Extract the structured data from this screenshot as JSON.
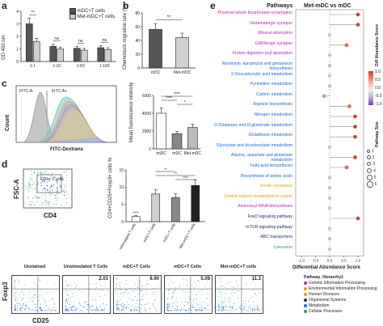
{
  "panel_labels": {
    "a": "a",
    "b": "b",
    "c": "c",
    "d": "d",
    "e": "e"
  },
  "colors": {
    "mDC": "#555555",
    "Met_mDC": "#cfcfcf",
    "blue_cat": "#1a66d6",
    "purple_cat": "#c020c0",
    "orange_cat": "#e6a000",
    "navy_cat": "#1a2a6c",
    "green_cat": "#16a085",
    "red_high": "#d83a1a",
    "mid": "#e6e6e6",
    "purple_low": "#7a3ab0"
  },
  "panel_a": {
    "ylabel": "OD 450 nm",
    "legend": [
      "mDC+T cells",
      "Met-mDC+T cells"
    ],
    "sig": [
      "**",
      "ns",
      "ns",
      "ns"
    ],
    "chart_data": {
      "type": "bar",
      "categories": [
        "1:1",
        "1:10",
        "1:50",
        "1:100"
      ],
      "series": [
        {
          "name": "mDC+T cells",
          "values": [
            3.0,
            1.2,
            1.05,
            1.1
          ]
        },
        {
          "name": "Met-mDC+T cells",
          "values": [
            1.6,
            1.0,
            0.9,
            0.95
          ]
        }
      ],
      "ylim": [
        0,
        4
      ],
      "yticks": [
        "0",
        "1",
        "2",
        "3",
        "4"
      ]
    }
  },
  "panel_b": {
    "ylabel": "Chemotaxis migration rate (%)",
    "sig": "**",
    "chart_data": {
      "type": "bar",
      "categories": [
        "mDC",
        "Met-mDC"
      ],
      "values": [
        56,
        44
      ],
      "ylim": [
        0,
        80
      ],
      "yticks": [
        "0",
        "20",
        "40",
        "60",
        "80"
      ]
    }
  },
  "panel_c_hist": {
    "ylabel": "Count",
    "xlabel": "FITC-Dextrans",
    "gate_left": "FITC-A-",
    "gate_right": "FITC-A+"
  },
  "panel_c_bar": {
    "ylabel": "Mean fluorescence intensity",
    "sig": [
      "****",
      "****",
      "*"
    ],
    "chart_data": {
      "type": "bar",
      "categories": [
        "imDC",
        "mDC",
        "Met-mDC"
      ],
      "values": [
        4000,
        1700,
        2400
      ],
      "ylim": [
        0,
        6000
      ],
      "yticks": [
        "0",
        "2000",
        "4000",
        "6000"
      ]
    }
  },
  "panel_d_gate": {
    "ylabel": "FSC-A",
    "xlabel": "CD4",
    "gate": "CD4+ T cells"
  },
  "panel_d_bar": {
    "ylabel": "CD4+CD25+Foxp3+ cells %",
    "sig": [
      "****",
      "**",
      "**",
      "****"
    ],
    "chart_data": {
      "type": "bar",
      "categories": [
        "Unstimulated T cells",
        "mDC+T cells",
        "mDC+T cells",
        "Met-mDC+T cells"
      ],
      "values": [
        1.5,
        8.0,
        7.0,
        10.5
      ],
      "ylim": [
        0,
        15
      ],
      "yticks": [
        "0",
        "5",
        "10",
        "15"
      ]
    }
  },
  "panel_d_flow": {
    "ylabel": "Foxp3",
    "xlabel": "CD25",
    "plots": [
      {
        "title": "Unstained",
        "pct": ""
      },
      {
        "title": "Unstimulated T Cells",
        "pct": "2.01"
      },
      {
        "title": "mDC+T Cells",
        "pct": "8.90"
      },
      {
        "title": "mDC+T Cells",
        "pct": "5.09"
      },
      {
        "title": "Met-mDC+T cells",
        "pct": "11.3"
      }
    ]
  },
  "panel_e": {
    "header_left": "Pathways",
    "header_right": "Met-mDC vs  mDC",
    "xlabel": "Differential Abundance Score",
    "xticks": [
      "-1.0",
      "-0.5",
      "0.0",
      "0.5",
      "1.0"
    ],
    "legend_da_title": "Diff Abundance Score",
    "legend_da_ticks": [
      "1.0",
      "0.5",
      "0.0",
      "-0.5",
      "-1.0"
    ],
    "legend_size_title": "Pathway Size",
    "legend_size_ticks": [
      "1",
      "2",
      "3",
      "4",
      "5",
      "6"
    ],
    "hier_title": "Pathway_Hierarchy1",
    "hier_items": [
      {
        "label": "Genetic Information Processing",
        "color": "#c020c0"
      },
      {
        "label": "Environmental Information Processing",
        "color": "#e6a000"
      },
      {
        "label": "Human Diseases",
        "color": "#e6a000"
      },
      {
        "label": "Organismal Systems",
        "color": "#1a2a6c"
      },
      {
        "label": "Metabolism",
        "color": "#1a66d6"
      },
      {
        "label": "Cellular Processes",
        "color": "#16a085"
      }
    ],
    "pathways": [
      {
        "label": "Proximal tubule bicarbonate reclamation",
        "color": "#c020c0",
        "score": 1.0
      },
      {
        "label": "Glutamatergic synapse",
        "color": "#c020c0",
        "score": 1.0
      },
      {
        "label": "Mineral absorption",
        "color": "#c020c0",
        "score": 0.0
      },
      {
        "label": "GABAergic synapse",
        "color": "#c020c0",
        "score": 0.6
      },
      {
        "label": "Protein digestion and absorption",
        "color": "#c020c0",
        "score": 0.0
      },
      {
        "label": "Neomycin, kanamycin and gentamicin biosynthesis",
        "color": "#1a66d6",
        "score": 0.0
      },
      {
        "label": "2-Oxocarboxylic acid metabolism",
        "color": "#1a66d6",
        "score": 0.0
      },
      {
        "label": "Pyrimidine metabolism",
        "color": "#1a66d6",
        "score": 0.0
      },
      {
        "label": "Carbon metabolism",
        "color": "#1a66d6",
        "score": -0.2
      },
      {
        "label": "Arginine biosynthesis",
        "color": "#1a66d6",
        "score": 0.7
      },
      {
        "label": "Nitrogen metabolism",
        "color": "#1a66d6",
        "score": 0.9
      },
      {
        "label": "D-Glutamine and D-glutamate metabolism",
        "color": "#1a66d6",
        "score": 0.9
      },
      {
        "label": "Glutathione metabolism",
        "color": "#1a66d6",
        "score": 0.9
      },
      {
        "label": "Glyoxylate and dicarboxylate metabolism",
        "color": "#1a66d6",
        "score": 0.0
      },
      {
        "label": "Alanine, aspartate and glutamate metabolism",
        "color": "#1a66d6",
        "score": 0.9
      },
      {
        "label": "Fatty acid biosynthesis",
        "color": "#1a66d6",
        "score": 0.6
      },
      {
        "label": "Biosynthesis of amino acids",
        "color": "#1a66d6",
        "score": 0.0
      },
      {
        "label": "Insulin resistance",
        "color": "#e6a000",
        "score": 0.0
      },
      {
        "label": "Central carbon metabolism in cancer",
        "color": "#e6a000",
        "score": 0.0
      },
      {
        "label": "Aminoacyl-tRNA biosynthesis",
        "color": "#c020c0",
        "score": 0.0
      },
      {
        "label": "FoxO signaling pathway",
        "color": "#1a2a6c",
        "score": 1.0
      },
      {
        "label": "mTOR signaling pathway",
        "color": "#1a2a6c",
        "score": 0.0
      },
      {
        "label": "ABC transporters",
        "color": "#1a2a6c",
        "score": 0.0
      },
      {
        "label": "Lysosome",
        "color": "#16a085",
        "score": 0.0
      }
    ]
  }
}
